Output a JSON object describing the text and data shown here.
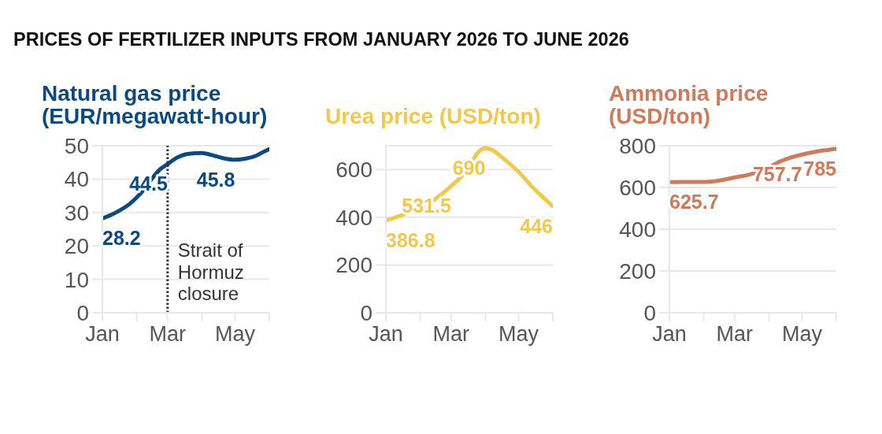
{
  "chart_data": [
    {
      "type": "other",
      "title": "PRICES OF FERTILIZER INPUTS FROM JANUARY 2026 TO JUNE 2026"
    },
    {
      "type": "line",
      "title": "Natural gas price (EUR/megawatt-hour)",
      "x": [
        "2026-01-01",
        "2026-01-09",
        "2026-01-17",
        "2026-01-25",
        "2026-02-01",
        "2026-02-08",
        "2026-02-15",
        "2026-02-22",
        "2026-03-01",
        "2026-03-10",
        "2026-03-20",
        "2026-04-01",
        "2026-04-10",
        "2026-04-20",
        "2026-05-01",
        "2026-05-10",
        "2026-05-20",
        "2026-05-27",
        "2026-06-01"
      ],
      "series": [
        {
          "color": "#0b4a80",
          "values": [
            28.2,
            29.3,
            30.7,
            32.4,
            34.5,
            37,
            40.2,
            42.9,
            44.5,
            46.5,
            47.6,
            47.8,
            47.2,
            46.3,
            45.8,
            46.1,
            47,
            48.2,
            49
          ],
          "value_labels": [
            "28.2",
            null,
            null,
            null,
            null,
            null,
            null,
            null,
            "44.5",
            null,
            null,
            null,
            null,
            null,
            "45.8",
            null,
            null,
            null,
            null
          ]
        }
      ],
      "xlim": [
        "2026-01-01",
        "2026-06-01"
      ],
      "xticks": [
        {
          "value": "2026-01-01",
          "label": "Jan"
        },
        {
          "value": "2026-02-01",
          "label": null
        },
        {
          "value": "2026-03-01",
          "label": "Mar"
        },
        {
          "value": "2026-04-01",
          "label": null
        },
        {
          "value": "2026-05-01",
          "label": "May"
        },
        {
          "value": "2026-06-01",
          "label": null
        }
      ],
      "ylim": [
        0,
        50
      ],
      "yticks": [
        0,
        10,
        20,
        30,
        40,
        50
      ],
      "grid": "y",
      "ref_lines": [
        {
          "axis": "x",
          "value": "2026-03-01",
          "label": "Strait of Hormuz closure",
          "color": "#333333",
          "line_style": "dotted"
        }
      ]
    },
    {
      "type": "line",
      "title": "Urea price (USD/ton)",
      "x": [
        "2026-01-01",
        "2026-01-10",
        "2026-01-20",
        "2026-02-01",
        "2026-02-15",
        "2026-03-01",
        "2026-03-10",
        "2026-03-20",
        "2026-03-26",
        "2026-04-01",
        "2026-04-08",
        "2026-04-15",
        "2026-05-01",
        "2026-05-15",
        "2026-06-01"
      ],
      "series": [
        {
          "color": "#f2c84b",
          "values": [
            386.8,
            400,
            418,
            445,
            478,
            531.5,
            570,
            635,
            675,
            690,
            680,
            655,
            590,
            520,
            446
          ],
          "value_labels": [
            "386.8",
            null,
            null,
            null,
            null,
            "531.5",
            null,
            null,
            null,
            "690",
            null,
            null,
            null,
            null,
            "446"
          ]
        }
      ],
      "xlim": [
        "2026-01-01",
        "2026-06-01"
      ],
      "xticks": [
        {
          "value": "2026-01-01",
          "label": "Jan"
        },
        {
          "value": "2026-02-01",
          "label": null
        },
        {
          "value": "2026-03-01",
          "label": "Mar"
        },
        {
          "value": "2026-04-01",
          "label": null
        },
        {
          "value": "2026-05-01",
          "label": "May"
        },
        {
          "value": "2026-06-01",
          "label": null
        }
      ],
      "ylim": [
        0,
        700
      ],
      "yticks": [
        0,
        200,
        400,
        600
      ],
      "grid": "y"
    },
    {
      "type": "line",
      "title": "Ammonia price (USD/ton)",
      "x": [
        "2026-01-01",
        "2026-01-15",
        "2026-02-01",
        "2026-02-10",
        "2026-02-20",
        "2026-03-01",
        "2026-03-15",
        "2026-03-25",
        "2026-04-01",
        "2026-04-10",
        "2026-04-20",
        "2026-05-01",
        "2026-05-10",
        "2026-05-20",
        "2026-06-01"
      ],
      "series": [
        {
          "color": "#cf7a5a",
          "values": [
            625.7,
            626,
            626,
            629,
            638,
            648,
            663,
            680,
            695,
            722,
            742,
            757.7,
            768,
            777,
            785
          ],
          "value_labels": [
            "625.7",
            null,
            null,
            null,
            null,
            null,
            null,
            null,
            null,
            null,
            null,
            "757.7",
            null,
            null,
            "785"
          ]
        }
      ],
      "xlim": [
        "2026-01-01",
        "2026-06-01"
      ],
      "xticks": [
        {
          "value": "2026-01-01",
          "label": "Jan"
        },
        {
          "value": "2026-02-01",
          "label": null
        },
        {
          "value": "2026-03-01",
          "label": "Mar"
        },
        {
          "value": "2026-04-01",
          "label": null
        },
        {
          "value": "2026-05-01",
          "label": "May"
        },
        {
          "value": "2026-06-01",
          "label": null
        }
      ],
      "ylim": [
        0,
        800
      ],
      "yticks": [
        0,
        200,
        400,
        600,
        800
      ],
      "grid": "y"
    }
  ]
}
